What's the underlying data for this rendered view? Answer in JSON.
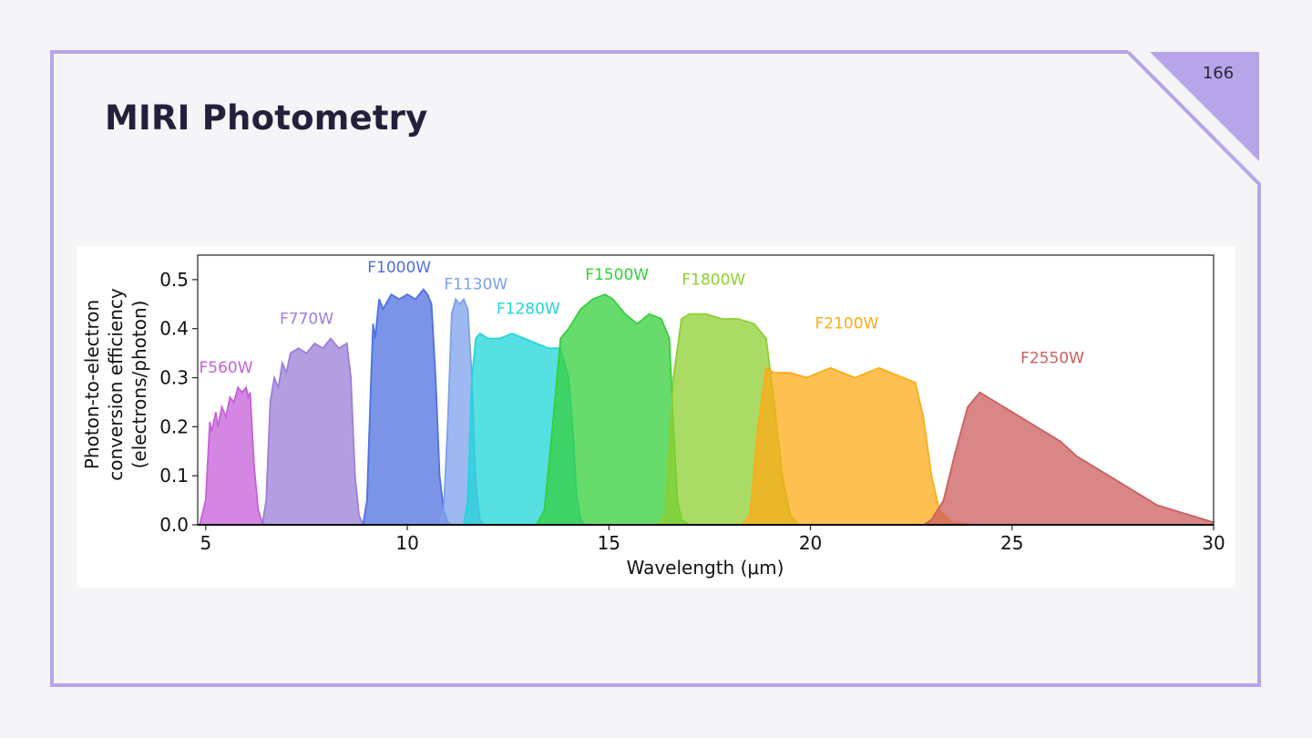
{
  "slide": {
    "title": "MIRI Photometry",
    "page_number": "166",
    "accent_color": "#b6a5e9",
    "background_color": "#f5f4f7",
    "title_color": "#24203a"
  },
  "chart_data": {
    "type": "area",
    "xlabel": "Wavelength (μm)",
    "ylabel_lines": [
      "Photon-to-electron",
      "conversion efficiency",
      "(electrons/photon)"
    ],
    "xlim": [
      4.8,
      30
    ],
    "ylim": [
      0,
      0.55
    ],
    "x_ticks": [
      5,
      10,
      15,
      20,
      25,
      30
    ],
    "y_ticks": [
      0.0,
      0.1,
      0.2,
      0.3,
      0.4,
      0.5
    ],
    "y_tick_labels": [
      "0.0",
      "0.1",
      "0.2",
      "0.3",
      "0.4",
      "0.5"
    ],
    "grid": false,
    "series": [
      {
        "name": "F560W",
        "color": "#c65fd8",
        "label_at": [
          5.5,
          0.31
        ],
        "x": [
          4.85,
          5.0,
          5.1,
          5.15,
          5.25,
          5.3,
          5.4,
          5.5,
          5.6,
          5.7,
          5.8,
          5.9,
          6.0,
          6.05,
          6.1,
          6.2,
          6.3,
          6.4,
          6.5
        ],
        "y": [
          0,
          0.05,
          0.21,
          0.19,
          0.23,
          0.2,
          0.24,
          0.22,
          0.26,
          0.25,
          0.28,
          0.27,
          0.28,
          0.26,
          0.27,
          0.12,
          0.03,
          0.005,
          0
        ]
      },
      {
        "name": "F770W",
        "color": "#9b7ed8",
        "label_at": [
          7.5,
          0.41
        ],
        "x": [
          6.4,
          6.5,
          6.6,
          6.7,
          6.8,
          6.9,
          7.0,
          7.1,
          7.3,
          7.5,
          7.7,
          7.9,
          8.1,
          8.3,
          8.5,
          8.6,
          8.7,
          8.8,
          8.9
        ],
        "y": [
          0,
          0.05,
          0.25,
          0.3,
          0.28,
          0.33,
          0.31,
          0.35,
          0.36,
          0.35,
          0.37,
          0.36,
          0.38,
          0.36,
          0.37,
          0.3,
          0.1,
          0.02,
          0
        ]
      },
      {
        "name": "F1000W",
        "color": "#4f70e0",
        "label_at": [
          9.8,
          0.515
        ],
        "x": [
          8.9,
          9.0,
          9.1,
          9.15,
          9.2,
          9.3,
          9.4,
          9.6,
          9.8,
          10.0,
          10.2,
          10.4,
          10.5,
          10.6,
          10.7,
          10.8,
          10.9,
          11.0,
          11.1
        ],
        "y": [
          0,
          0.05,
          0.3,
          0.41,
          0.38,
          0.46,
          0.44,
          0.47,
          0.46,
          0.47,
          0.46,
          0.48,
          0.47,
          0.45,
          0.3,
          0.1,
          0.03,
          0.005,
          0
        ]
      },
      {
        "name": "F1130W",
        "color": "#7da0ec",
        "label_at": [
          11.7,
          0.48
        ],
        "x": [
          10.8,
          10.9,
          11.0,
          11.1,
          11.2,
          11.3,
          11.4,
          11.5,
          11.6,
          11.7,
          11.8,
          11.9
        ],
        "y": [
          0,
          0.03,
          0.2,
          0.43,
          0.46,
          0.45,
          0.46,
          0.44,
          0.3,
          0.08,
          0.01,
          0
        ]
      },
      {
        "name": "F1280W",
        "color": "#1fd6d8",
        "label_at": [
          13.0,
          0.43
        ],
        "x": [
          11.4,
          11.5,
          11.6,
          11.7,
          11.8,
          12.0,
          12.3,
          12.6,
          12.9,
          13.2,
          13.5,
          13.8,
          14.0,
          14.1,
          14.2,
          14.3,
          14.4
        ],
        "y": [
          0,
          0.05,
          0.3,
          0.38,
          0.39,
          0.38,
          0.38,
          0.39,
          0.38,
          0.37,
          0.36,
          0.36,
          0.3,
          0.2,
          0.06,
          0.01,
          0
        ]
      },
      {
        "name": "F1500W",
        "color": "#35cf3c",
        "label_at": [
          15.2,
          0.5
        ],
        "x": [
          13.2,
          13.4,
          13.6,
          13.8,
          14.0,
          14.3,
          14.6,
          14.9,
          15.1,
          15.4,
          15.7,
          16.0,
          16.3,
          16.5,
          16.6,
          16.7,
          16.8,
          17.0
        ],
        "y": [
          0,
          0.03,
          0.2,
          0.38,
          0.4,
          0.44,
          0.46,
          0.47,
          0.46,
          0.43,
          0.41,
          0.43,
          0.42,
          0.38,
          0.2,
          0.05,
          0.01,
          0
        ]
      },
      {
        "name": "F1800W",
        "color": "#8dcf30",
        "label_at": [
          17.6,
          0.49
        ],
        "x": [
          16.2,
          16.4,
          16.6,
          16.8,
          17.0,
          17.4,
          17.8,
          18.2,
          18.6,
          18.9,
          19.1,
          19.3,
          19.5,
          19.7
        ],
        "y": [
          0,
          0.02,
          0.3,
          0.42,
          0.43,
          0.43,
          0.42,
          0.42,
          0.41,
          0.38,
          0.25,
          0.1,
          0.02,
          0
        ]
      },
      {
        "name": "F2100W",
        "color": "#fdab16",
        "label_at": [
          20.9,
          0.4
        ],
        "x": [
          18.3,
          18.5,
          18.7,
          18.9,
          19.1,
          19.5,
          19.9,
          20.2,
          20.5,
          20.8,
          21.1,
          21.4,
          21.7,
          22.0,
          22.3,
          22.6,
          22.8,
          23.0,
          23.2,
          23.5,
          24.0
        ],
        "y": [
          0,
          0.02,
          0.2,
          0.32,
          0.31,
          0.31,
          0.3,
          0.31,
          0.32,
          0.31,
          0.3,
          0.31,
          0.32,
          0.31,
          0.3,
          0.29,
          0.22,
          0.1,
          0.03,
          0.005,
          0
        ]
      },
      {
        "name": "F2550W",
        "color": "#cc5e5e",
        "label_at": [
          26.0,
          0.33
        ],
        "x": [
          22.8,
          23.0,
          23.3,
          23.6,
          23.9,
          24.2,
          24.6,
          25.0,
          25.4,
          25.8,
          26.2,
          26.6,
          27.0,
          27.4,
          27.8,
          28.2,
          28.6,
          29.0,
          29.4,
          29.8,
          30.0
        ],
        "y": [
          0,
          0.01,
          0.05,
          0.15,
          0.24,
          0.27,
          0.25,
          0.23,
          0.21,
          0.19,
          0.17,
          0.14,
          0.12,
          0.1,
          0.08,
          0.06,
          0.04,
          0.03,
          0.02,
          0.01,
          0.005
        ]
      }
    ]
  }
}
